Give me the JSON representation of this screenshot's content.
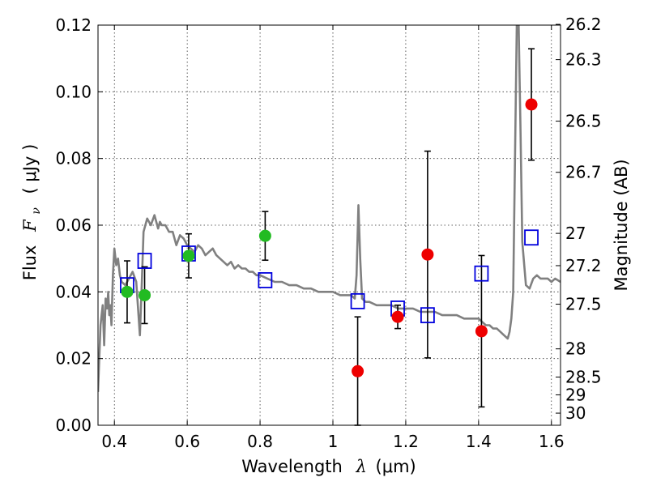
{
  "chart_data": {
    "type": "scatter",
    "title": "",
    "xlabel_text": "Wavelength",
    "xlabel_symbol": "λ",
    "xlabel_unit": "(μm)",
    "ylabel_text": "Flux",
    "ylabel_symbol": "F",
    "ylabel_sub": "ν",
    "ylabel_unit": "( μJy )",
    "y2label": "Magnitude (AB)",
    "xlim": [
      0.355,
      1.625
    ],
    "ylim": [
      0.0,
      0.12
    ],
    "grid": true,
    "x_ticks": [
      0.4,
      0.6,
      0.8,
      1.0,
      1.2,
      1.4,
      1.6
    ],
    "x_tick_labels": [
      "0.4",
      "0.6",
      "0.8",
      "1",
      "1.2",
      "1.4",
      "1.6"
    ],
    "y_ticks": [
      0.0,
      0.02,
      0.04,
      0.06,
      0.08,
      0.1,
      0.12
    ],
    "y_tick_labels": [
      "0.00",
      "0.02",
      "0.04",
      "0.06",
      "0.08",
      "0.10",
      "0.12"
    ],
    "y2_ticks": [
      {
        "label": "26.2",
        "mag": 26.2
      },
      {
        "label": "26.3",
        "mag": 26.3
      },
      {
        "label": "26.5",
        "mag": 26.5
      },
      {
        "label": "26.7",
        "mag": 26.7
      },
      {
        "label": "27",
        "mag": 27.0
      },
      {
        "label": "27.2",
        "mag": 27.2
      },
      {
        "label": "27.5",
        "mag": 27.5
      },
      {
        "label": "28",
        "mag": 28.0
      },
      {
        "label": "28.5",
        "mag": 28.5
      },
      {
        "label": "29",
        "mag": 29.0
      },
      {
        "label": "30",
        "mag": 30.0
      }
    ],
    "colors": {
      "model": "#808080",
      "green": "#22bb22",
      "red": "#ee0000",
      "model_box": "#0000dd",
      "errorbar": "#000000"
    },
    "series": [
      {
        "name": "model spectrum",
        "kind": "line",
        "x": [
          0.355,
          0.362,
          0.368,
          0.372,
          0.376,
          0.38,
          0.383,
          0.386,
          0.389,
          0.392,
          0.396,
          0.4,
          0.405,
          0.41,
          0.415,
          0.42,
          0.43,
          0.44,
          0.45,
          0.46,
          0.47,
          0.475,
          0.48,
          0.49,
          0.5,
          0.51,
          0.52,
          0.525,
          0.53,
          0.54,
          0.55,
          0.56,
          0.57,
          0.58,
          0.59,
          0.6,
          0.61,
          0.62,
          0.63,
          0.64,
          0.65,
          0.66,
          0.67,
          0.68,
          0.69,
          0.7,
          0.71,
          0.72,
          0.73,
          0.74,
          0.75,
          0.76,
          0.77,
          0.78,
          0.79,
          0.8,
          0.82,
          0.84,
          0.86,
          0.88,
          0.9,
          0.92,
          0.94,
          0.96,
          0.98,
          1.0,
          1.02,
          1.04,
          1.05,
          1.06,
          1.065,
          1.07,
          1.075,
          1.08,
          1.09,
          1.1,
          1.12,
          1.14,
          1.16,
          1.18,
          1.2,
          1.22,
          1.24,
          1.26,
          1.28,
          1.3,
          1.32,
          1.34,
          1.36,
          1.38,
          1.4,
          1.41,
          1.42,
          1.43,
          1.44,
          1.45,
          1.46,
          1.47,
          1.48,
          1.485,
          1.49,
          1.495,
          1.5,
          1.505,
          1.51,
          1.515,
          1.52,
          1.53,
          1.54,
          1.55,
          1.56,
          1.57,
          1.58,
          1.59,
          1.6,
          1.61,
          1.625
        ],
        "y": [
          0.01,
          0.03,
          0.036,
          0.024,
          0.038,
          0.035,
          0.04,
          0.033,
          0.036,
          0.03,
          0.045,
          0.053,
          0.048,
          0.05,
          0.045,
          0.043,
          0.042,
          0.044,
          0.046,
          0.043,
          0.027,
          0.042,
          0.058,
          0.062,
          0.06,
          0.063,
          0.059,
          0.061,
          0.06,
          0.06,
          0.058,
          0.058,
          0.054,
          0.057,
          0.056,
          0.054,
          0.053,
          0.052,
          0.054,
          0.053,
          0.051,
          0.052,
          0.053,
          0.051,
          0.05,
          0.049,
          0.048,
          0.049,
          0.047,
          0.048,
          0.047,
          0.047,
          0.046,
          0.046,
          0.045,
          0.045,
          0.044,
          0.043,
          0.043,
          0.042,
          0.042,
          0.041,
          0.041,
          0.04,
          0.04,
          0.04,
          0.039,
          0.039,
          0.039,
          0.038,
          0.045,
          0.066,
          0.05,
          0.038,
          0.037,
          0.037,
          0.036,
          0.036,
          0.036,
          0.035,
          0.035,
          0.035,
          0.034,
          0.034,
          0.034,
          0.033,
          0.033,
          0.033,
          0.032,
          0.032,
          0.032,
          0.031,
          0.03,
          0.03,
          0.029,
          0.029,
          0.028,
          0.027,
          0.026,
          0.028,
          0.032,
          0.04,
          0.08,
          0.12,
          0.12,
          0.09,
          0.055,
          0.042,
          0.041,
          0.044,
          0.045,
          0.044,
          0.044,
          0.044,
          0.043,
          0.044,
          0.043
        ]
      },
      {
        "name": "measured (green)",
        "kind": "points",
        "marker": "circle",
        "color": "green",
        "x": [
          0.435,
          0.483,
          0.604,
          0.814
        ],
        "y": [
          0.04,
          0.039,
          0.0508,
          0.0568
        ],
        "yerr_lo": [
          0.0093,
          0.0085,
          0.0066,
          0.0073
        ],
        "yerr_hi": [
          0.0093,
          0.0085,
          0.0066,
          0.0073
        ]
      },
      {
        "name": "measured (red)",
        "kind": "points",
        "marker": "circle",
        "color": "red",
        "x": [
          1.068,
          1.178,
          1.26,
          1.408,
          1.545
        ],
        "y": [
          0.0162,
          0.0325,
          0.0512,
          0.0282,
          0.0962
        ],
        "yerr_lo": [
          0.0162,
          0.0035,
          0.031,
          0.0227,
          0.0167
        ],
        "yerr_hi": [
          0.0163,
          0.0035,
          0.031,
          0.0227,
          0.0167
        ]
      },
      {
        "name": "model photometry",
        "kind": "points",
        "marker": "square-open",
        "color": "model_box",
        "x": [
          0.435,
          0.483,
          0.604,
          0.814,
          1.068,
          1.178,
          1.26,
          1.408,
          1.545
        ],
        "y": [
          0.042,
          0.0493,
          0.0515,
          0.0435,
          0.0372,
          0.035,
          0.033,
          0.0455,
          0.0563
        ]
      }
    ]
  }
}
